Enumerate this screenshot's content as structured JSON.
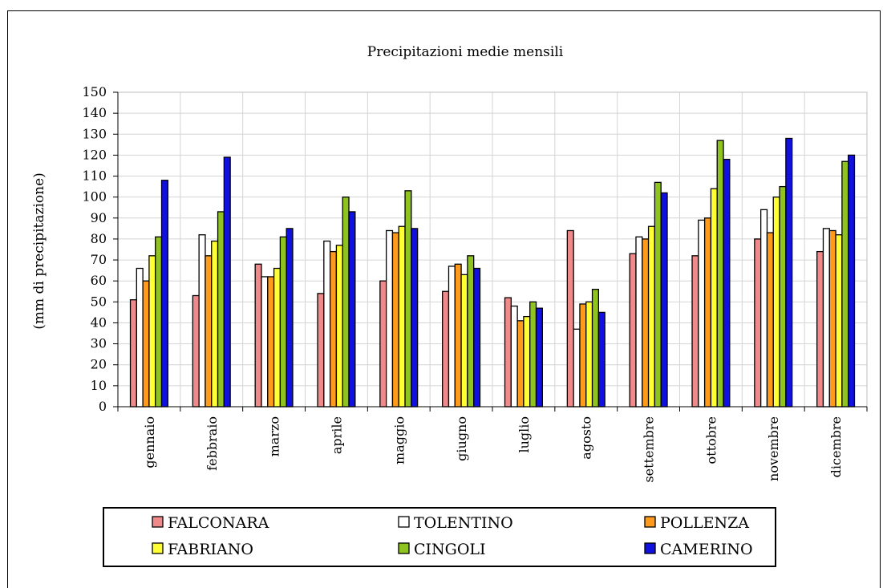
{
  "chart_data": {
    "type": "bar",
    "title": "Precipitazioni medie mensili",
    "xlabel": "",
    "ylabel": "(mm di precipitazione)",
    "ylim": [
      0,
      150
    ],
    "ytick_step": 10,
    "grid": true,
    "legend_position": "bottom",
    "categories": [
      "gennaio",
      "febbraio",
      "marzo",
      "aprile",
      "maggio",
      "giugno",
      "luglio",
      "agosto",
      "settembre",
      "ottobre",
      "novembre",
      "dicembre"
    ],
    "series": [
      {
        "name": "FALCONARA",
        "color": "#f08a8a",
        "values": [
          51,
          53,
          68,
          54,
          60,
          55,
          52,
          84,
          73,
          72,
          80,
          74
        ]
      },
      {
        "name": "TOLENTINO",
        "color": "#ffffff",
        "values": [
          66,
          82,
          62,
          79,
          84,
          67,
          48,
          37,
          81,
          89,
          94,
          85
        ]
      },
      {
        "name": "POLLENZA",
        "color": "#ff9a1a",
        "values": [
          60,
          72,
          62,
          74,
          83,
          68,
          41,
          49,
          80,
          90,
          83,
          84
        ]
      },
      {
        "name": "FABRIANO",
        "color": "#ffff33",
        "values": [
          72,
          79,
          66,
          77,
          86,
          63,
          43,
          50,
          86,
          104,
          100,
          82
        ]
      },
      {
        "name": "CINGOLI",
        "color": "#8fc31f",
        "values": [
          81,
          93,
          81,
          100,
          103,
          72,
          50,
          56,
          107,
          127,
          105,
          117
        ]
      },
      {
        "name": "CAMERINO",
        "color": "#1010e0",
        "values": [
          108,
          119,
          85,
          93,
          85,
          66,
          47,
          45,
          102,
          118,
          128,
          120
        ]
      }
    ]
  }
}
